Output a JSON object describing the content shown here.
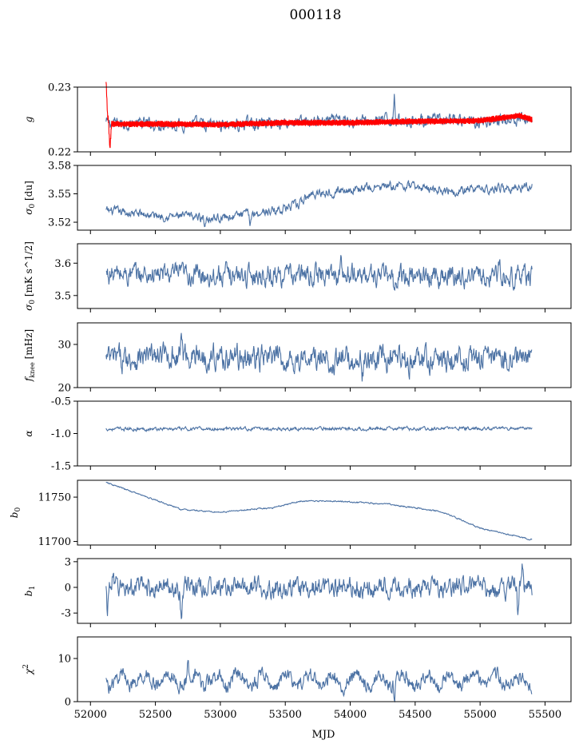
{
  "figure": {
    "title": "000118",
    "xlabel": "MJD",
    "colors": {
      "series": "#4c72a4",
      "model": "#ff0000",
      "axes": "#000000"
    }
  },
  "chart_data": [
    {
      "type": "line",
      "ylabel": "g",
      "ylim": [
        0.22,
        0.23
      ],
      "yticks": [
        0.22,
        0.23
      ],
      "xlim": [
        51900,
        55700
      ],
      "x_start": 52120,
      "x_end": 55400,
      "series": [
        {
          "style": "noisy",
          "color": "#4c72a4",
          "base": [
            [
              52120,
              0.2245
            ],
            [
              52500,
              0.2243
            ],
            [
              53000,
              0.2242
            ],
            [
              53500,
              0.2246
            ],
            [
              54000,
              0.2248
            ],
            [
              54500,
              0.2249
            ],
            [
              55000,
              0.2247
            ],
            [
              55400,
              0.2251
            ]
          ],
          "noise": 0.0007,
          "spikes": [
            [
              54340,
              0.0045
            ],
            [
              53140,
              -0.0018
            ],
            [
              52890,
              -0.0015
            ]
          ]
        },
        {
          "style": "band",
          "color": "#ff0000",
          "base": [
            [
              52120,
              0.2262
            ],
            [
              52150,
              0.2243
            ],
            [
              52500,
              0.2243
            ],
            [
              53000,
              0.2242
            ],
            [
              53500,
              0.2245
            ],
            [
              54000,
              0.2245
            ],
            [
              54500,
              0.2247
            ],
            [
              55000,
              0.2248
            ],
            [
              55300,
              0.2256
            ],
            [
              55400,
              0.225
            ]
          ],
          "halfwidth": 0.0005,
          "spikes": [
            [
              52120,
              0.005
            ],
            [
              52150,
              -0.004
            ]
          ]
        }
      ]
    },
    {
      "type": "line",
      "ylabel": "σ0 [du]",
      "ylim": [
        3.518,
        3.575
      ],
      "yticks": [
        3.525,
        3.55,
        3.575
      ],
      "xlim": [
        51900,
        55700
      ],
      "x_start": 52120,
      "x_end": 55400,
      "series": [
        {
          "style": "noisy",
          "color": "#4c72a4",
          "base": [
            [
              52120,
              3.535
            ],
            [
              52500,
              3.531
            ],
            [
              53000,
              3.529
            ],
            [
              53400,
              3.535
            ],
            [
              53600,
              3.54
            ],
            [
              53700,
              3.55
            ],
            [
              54000,
              3.554
            ],
            [
              54400,
              3.557
            ],
            [
              54800,
              3.553
            ],
            [
              55400,
              3.556
            ]
          ],
          "noise": 0.003,
          "spikes": [
            [
              52880,
              -0.008
            ],
            [
              53230,
              -0.009
            ],
            [
              55400,
              0.006
            ]
          ]
        }
      ]
    },
    {
      "type": "line",
      "ylabel": "σ0 [mK s^1/2]",
      "ylim": [
        3.46,
        3.66
      ],
      "yticks": [
        3.5,
        3.6
      ],
      "xlim": [
        51900,
        55700
      ],
      "x_start": 52120,
      "x_end": 55400,
      "series": [
        {
          "style": "noisy",
          "color": "#4c72a4",
          "base": [
            [
              52120,
              3.565
            ],
            [
              55400,
              3.56
            ]
          ],
          "noise": 0.025,
          "spikes": [
            [
              54340,
              -0.08
            ],
            [
              55150,
              0.07
            ],
            [
              53930,
              0.05
            ]
          ]
        }
      ]
    },
    {
      "type": "line",
      "ylabel": "fknee [mHz]",
      "ylim": [
        20,
        35
      ],
      "yticks": [
        20,
        30
      ],
      "xlim": [
        51900,
        55700
      ],
      "x_start": 52120,
      "x_end": 55400,
      "series": [
        {
          "style": "noisy",
          "color": "#4c72a4",
          "base": [
            [
              52120,
              26.5
            ],
            [
              52700,
              27.5
            ],
            [
              53500,
              26.5
            ],
            [
              54500,
              26.2
            ],
            [
              55400,
              27
            ]
          ],
          "noise": 2.2,
          "spikes": [
            [
              52700,
              6
            ],
            [
              54100,
              -4.5
            ]
          ]
        }
      ]
    },
    {
      "type": "line",
      "ylabel": "α",
      "ylim": [
        -1.5,
        -0.5
      ],
      "yticks": [
        -1.5,
        -1.0,
        -0.5
      ],
      "xlim": [
        51900,
        55700
      ],
      "x_start": 52120,
      "x_end": 55400,
      "series": [
        {
          "style": "noisy",
          "color": "#4c72a4",
          "base": [
            [
              52120,
              -0.93
            ],
            [
              55400,
              -0.92
            ]
          ],
          "noise": 0.02,
          "spikes": []
        }
      ]
    },
    {
      "type": "line",
      "ylabel": "b0",
      "ylim": [
        11696,
        11769
      ],
      "yticks": [
        11700,
        11750
      ],
      "xlim": [
        51900,
        55700
      ],
      "x_start": 52120,
      "x_end": 55400,
      "series": [
        {
          "style": "noisy",
          "color": "#4c72a4",
          "base": [
            [
              52130,
              11766
            ],
            [
              52400,
              11752
            ],
            [
              52700,
              11736
            ],
            [
              53000,
              11733
            ],
            [
              53400,
              11738
            ],
            [
              53600,
              11745
            ],
            [
              53800,
              11746
            ],
            [
              54300,
              11742
            ],
            [
              54700,
              11734
            ],
            [
              55000,
              11715
            ],
            [
              55400,
              11702
            ]
          ],
          "noise": 0.6,
          "spikes": []
        }
      ]
    },
    {
      "type": "line",
      "ylabel": "b1",
      "ylim": [
        -3.5,
        2.8
      ],
      "yticks": [
        -2.5,
        0.0,
        2.5
      ],
      "xlim": [
        51900,
        55700
      ],
      "x_start": 52120,
      "x_end": 55400,
      "series": [
        {
          "style": "noisy",
          "color": "#4c72a4",
          "base": [
            [
              52120,
              0.0
            ],
            [
              55400,
              0.0
            ]
          ],
          "noise": 0.75,
          "spikes": [
            [
              52700,
              -3.0
            ],
            [
              55330,
              2.5
            ],
            [
              55290,
              -2.6
            ],
            [
              52130,
              -2.4
            ],
            [
              52170,
              1.8
            ]
          ]
        }
      ]
    },
    {
      "type": "line",
      "ylabel": "χ²",
      "ylim": [
        0,
        15
      ],
      "yticks": [
        0,
        10
      ],
      "xlim": [
        51900,
        55700
      ],
      "x_start": 52120,
      "x_end": 55400,
      "series": [
        {
          "style": "noisy",
          "color": "#4c72a4",
          "base": [
            [
              52120,
              5
            ],
            [
              55400,
              5
            ]
          ],
          "noise": 1.3,
          "osc": 1.5,
          "spikes": [
            [
              52750,
              4
            ],
            [
              54340,
              -3.5
            ]
          ]
        }
      ]
    }
  ],
  "x_axis": {
    "ticks": [
      52000,
      52500,
      53000,
      53500,
      54000,
      54500,
      55000,
      55500
    ]
  }
}
